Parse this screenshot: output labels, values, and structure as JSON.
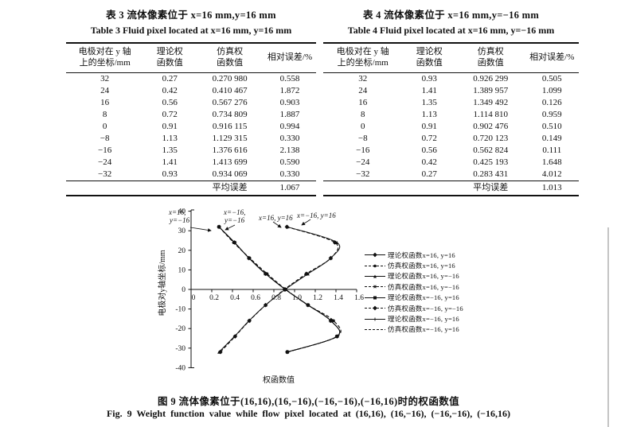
{
  "tables": [
    {
      "title_zh": "表 3  流体像素位于 x=16 mm,y=16 mm",
      "title_en": "Table 3  Fluid pixel located at x=16 mm, y=16 mm",
      "col_headers": [
        [
          "电极对在 y 轴",
          "上的坐标/mm"
        ],
        [
          "理论权",
          "函数值"
        ],
        [
          "仿真权",
          "函数值"
        ],
        [
          "相对误差/%"
        ]
      ],
      "rows": [
        [
          "32",
          "0.27",
          "0.270 980",
          "0.558"
        ],
        [
          "24",
          "0.42",
          "0.410 467",
          "1.872"
        ],
        [
          "16",
          "0.56",
          "0.567 276",
          "0.903"
        ],
        [
          "8",
          "0.72",
          "0.734 809",
          "1.887"
        ],
        [
          "0",
          "0.91",
          "0.916 115",
          "0.994"
        ],
        [
          "−8",
          "1.13",
          "1.129 315",
          "0.330"
        ],
        [
          "−16",
          "1.35",
          "1.376 616",
          "2.138"
        ],
        [
          "−24",
          "1.41",
          "1.413 699",
          "0.590"
        ],
        [
          "−32",
          "0.93",
          "0.934 069",
          "0.330"
        ]
      ],
      "footer_label": "平均误差",
      "footer_value": "1.067"
    },
    {
      "title_zh": "表 4  流体像素位于 x=16 mm,y=−16 mm",
      "title_en": "Table 4  Fluid pixel located at x=16 mm, y=−16 mm",
      "col_headers": [
        [
          "电极对在 y 轴",
          "上的坐标/mm"
        ],
        [
          "理论权",
          "函数值"
        ],
        [
          "仿真权",
          "函数值"
        ],
        [
          "相对误差/%"
        ]
      ],
      "rows": [
        [
          "32",
          "0.93",
          "0.926 299",
          "0.505"
        ],
        [
          "24",
          "1.41",
          "1.389 957",
          "1.099"
        ],
        [
          "16",
          "1.35",
          "1.349 492",
          "0.126"
        ],
        [
          "8",
          "1.13",
          "1.114 810",
          "0.959"
        ],
        [
          "0",
          "0.91",
          "0.902 476",
          "0.510"
        ],
        [
          "−8",
          "0.72",
          "0.720 123",
          "0.149"
        ],
        [
          "−16",
          "0.56",
          "0.562 824",
          "0.111"
        ],
        [
          "−24",
          "0.42",
          "0.425 193",
          "1.648"
        ],
        [
          "−32",
          "0.27",
          "0.283 431",
          "4.012"
        ]
      ],
      "footer_label": "平均误差",
      "footer_value": "1.013"
    }
  ],
  "chart_data": {
    "type": "line",
    "title": "",
    "xlabel": "权函数值",
    "ylabel": "电极对y轴坐标/mm",
    "xlim": [
      0,
      1.6
    ],
    "ylim": [
      -40,
      40
    ],
    "grid": false,
    "legend_position": "right",
    "x_ticks": [
      "0",
      "0.2",
      "0.4",
      "0.6",
      "0.8",
      "1.0",
      "1.2",
      "1.4",
      "1.6"
    ],
    "y_ticks": [
      40,
      30,
      20,
      10,
      0,
      -10,
      -20,
      -30,
      -40
    ],
    "electrode_y_mm": [
      32,
      24,
      16,
      8,
      0,
      -8,
      -16,
      -24,
      -32
    ],
    "series": [
      {
        "name": "理论权函数x=16, y=16",
        "line": "solid",
        "marker": "diamond",
        "values": [
          0.27,
          0.42,
          0.56,
          0.72,
          0.91,
          1.13,
          1.35,
          1.41,
          0.93
        ]
      },
      {
        "name": "仿真权函数x=16, y=16",
        "line": "dashed",
        "marker": "circle",
        "values": [
          0.27098,
          0.410467,
          0.567276,
          0.734809,
          0.916115,
          1.129315,
          1.376616,
          1.413699,
          0.934069
        ]
      },
      {
        "name": "理论权函数x=16, y=−16",
        "line": "solid",
        "marker": "triangle",
        "values": [
          0.93,
          1.41,
          1.35,
          1.13,
          0.91,
          0.72,
          0.56,
          0.42,
          0.27
        ]
      },
      {
        "name": "仿真权函数x=16, y=−16",
        "line": "dashed",
        "marker": "star",
        "values": [
          0.926299,
          1.389957,
          1.349492,
          1.11481,
          0.902476,
          0.720123,
          0.562824,
          0.425193,
          0.283431
        ]
      },
      {
        "name": "理论权函数x=−16, y=16",
        "line": "solid",
        "marker": "square",
        "values": [
          0.27,
          0.42,
          0.56,
          0.72,
          0.91,
          1.13,
          1.35,
          1.41,
          0.93
        ]
      },
      {
        "name": "仿真权函数x=−16, y=−16",
        "line": "dashed",
        "marker": "diamond",
        "values": [
          0.926299,
          1.389957,
          1.349492,
          1.11481,
          0.902476,
          0.720123,
          0.562824,
          0.425193,
          0.283431
        ]
      },
      {
        "name": "理论权函数x=−16, y=16",
        "line": "solid",
        "marker": "plus",
        "values": [
          0.27,
          0.42,
          0.56,
          0.72,
          0.91,
          1.13,
          1.35,
          1.41,
          0.93
        ]
      },
      {
        "name": "仿真权函数x=−16, y=16",
        "line": "dashed",
        "marker": "none",
        "values": [
          0.27098,
          0.410467,
          0.567276,
          0.734809,
          0.916115,
          1.129315,
          1.376616,
          1.413699,
          0.934069
        ]
      }
    ],
    "annotations": [
      {
        "text_lines": [
          "x=16,",
          "y=−16"
        ]
      },
      {
        "text_lines": [
          "x=−16,",
          "y=−16"
        ]
      },
      {
        "text_lines": [
          "x=16, y=16"
        ]
      },
      {
        "text_lines": [
          "x=−16, y=16"
        ]
      }
    ]
  },
  "caption": {
    "zh": "图 9  流体像素位于(16,16),(16,−16),(−16,−16),(−16,16)时的权函数值",
    "en": "Fig. 9  Weight function value while flow pixel located at (16,16), (16,−16), (−16,−16), (−16,16)"
  }
}
